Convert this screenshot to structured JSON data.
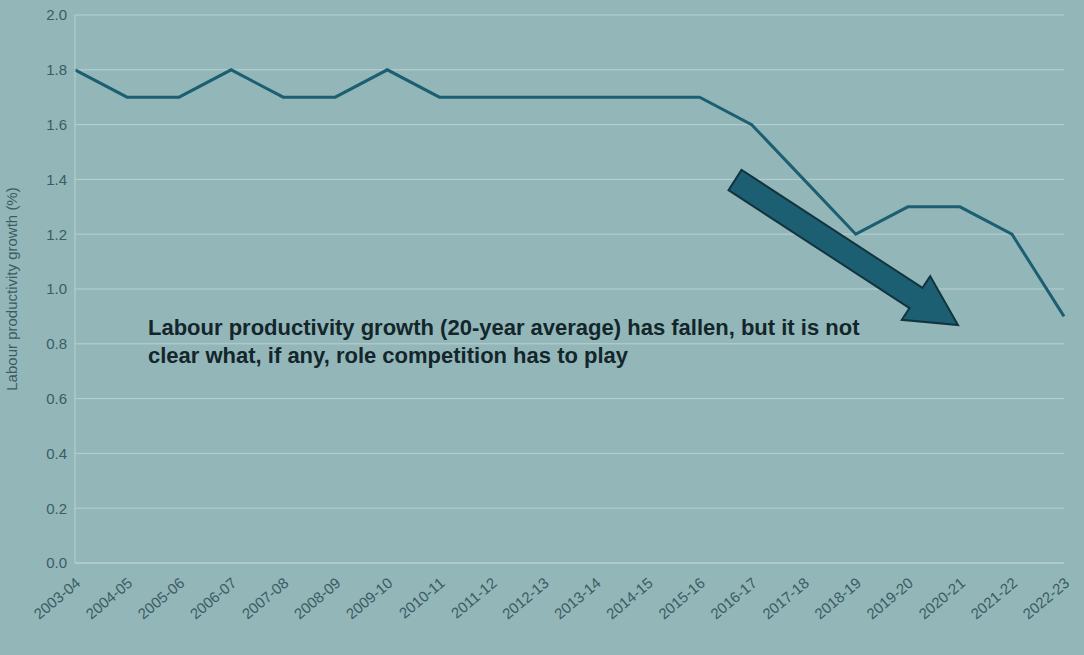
{
  "chart_data": {
    "type": "line",
    "y_label": "Labour productivity growth (%)",
    "annotation": "Labour productivity growth (20-year average) has fallen, but it is not clear what, if any, role competition has to play",
    "categories": [
      "2003-04",
      "2004-05",
      "2005-06",
      "2006-07",
      "2007-08",
      "2008-09",
      "2009-10",
      "2010-11",
      "2011-12",
      "2012-13",
      "2013-14",
      "2014-15",
      "2015-16",
      "2016-17",
      "2017-18",
      "2018-19",
      "2019-20",
      "2020-21",
      "2021-22",
      "2022-23"
    ],
    "values": [
      1.8,
      1.7,
      1.7,
      1.8,
      1.7,
      1.7,
      1.8,
      1.7,
      1.7,
      1.7,
      1.7,
      1.7,
      1.7,
      1.6,
      1.4,
      1.2,
      1.3,
      1.3,
      1.2,
      0.9
    ],
    "color": "#1d5f72",
    "ylim": [
      0,
      2
    ],
    "yticks": [
      {
        "value": 0,
        "label": "0.0"
      },
      0.2,
      0.4,
      0.6,
      0.8,
      {
        "value": 1,
        "label": "1.0"
      },
      1.2,
      1.4,
      1.6,
      1.8,
      {
        "value": 2,
        "label": "2.0"
      }
    ],
    "grid": true
  }
}
